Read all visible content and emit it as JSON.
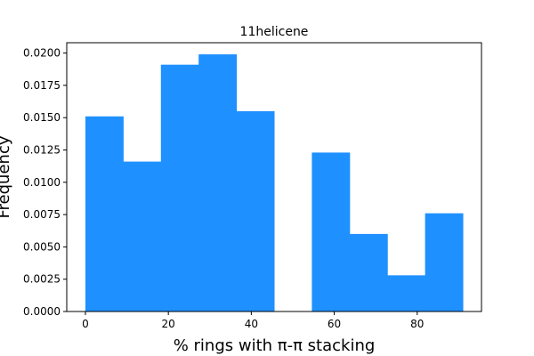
{
  "chart_data": {
    "type": "bar",
    "title": "11helicene",
    "xlabel": "% rings with π-π stacking",
    "ylabel": "Frequency",
    "xlim": [
      -4.5,
      95.5
    ],
    "ylim": [
      0,
      0.0208
    ],
    "bin_edges": [
      0,
      9.1,
      18.2,
      27.3,
      36.4,
      45.5,
      54.6,
      63.7,
      72.8,
      81.9,
      91.0
    ],
    "values": [
      0.0151,
      0.0116,
      0.0191,
      0.0199,
      0.0155,
      0.0,
      0.0123,
      0.006,
      0.0028,
      0.0076
    ],
    "x_ticks": [
      0,
      20,
      40,
      60,
      80
    ],
    "x_tick_labels": [
      "0",
      "20",
      "40",
      "60",
      "80"
    ],
    "y_ticks": [
      0,
      0.0025,
      0.005,
      0.0075,
      0.01,
      0.0125,
      0.015,
      0.0175,
      0.02
    ],
    "y_tick_labels": [
      "0.0000",
      "0.0025",
      "0.0050",
      "0.0075",
      "0.0100",
      "0.0125",
      "0.0150",
      "0.0175",
      "0.0200"
    ],
    "bar_color": "#1e90ff",
    "grid": false,
    "legend": "none"
  }
}
